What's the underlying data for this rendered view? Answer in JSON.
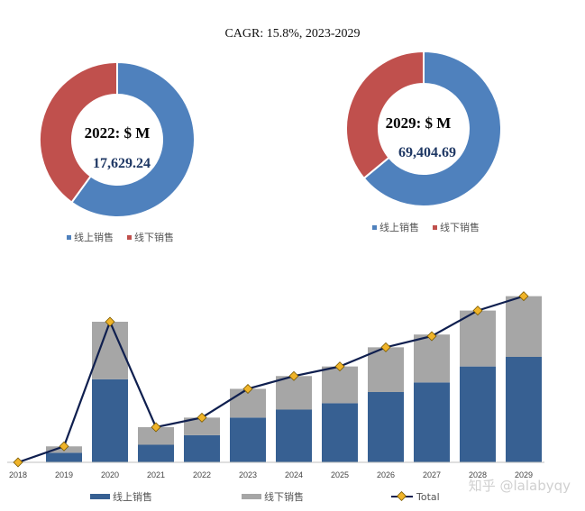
{
  "header": {
    "cagr_text": "CAGR: 15.8%, 2023-2029"
  },
  "colors": {
    "online": "#4f81bd",
    "offline": "#c0504d",
    "bar_online": "#376092",
    "bar_offline": "#a6a6a6",
    "total_line": "#0f1f4f",
    "marker": "#f0b429"
  },
  "donuts": [
    {
      "title": "2022: $ M",
      "value": "17,629.24",
      "online_share": 0.6,
      "offline_share": 0.4
    },
    {
      "title": "2029: $ M",
      "value": "69,404.69",
      "online_share": 0.64,
      "offline_share": 0.36
    }
  ],
  "donut_legend": [
    "线上销售",
    "线下销售"
  ],
  "chart_data": {
    "type": "bar",
    "stacked": true,
    "categories": [
      "2018",
      "2019",
      "2020",
      "2021",
      "2022",
      "2023",
      "2024",
      "2025",
      "2026",
      "2027",
      "2028",
      "2029"
    ],
    "series": [
      {
        "name": "线上销售",
        "values": [
          0,
          6,
          52,
          11,
          17,
          28,
          33,
          37,
          44,
          50,
          60,
          66
        ]
      },
      {
        "name": "线下销售",
        "values": [
          0,
          4,
          36,
          11,
          11,
          18,
          21,
          23,
          28,
          30,
          35,
          38
        ]
      },
      {
        "name": "Total",
        "type": "line",
        "values": [
          0,
          10,
          88,
          22,
          28,
          46,
          54,
          60,
          72,
          79,
          95,
          104
        ]
      }
    ],
    "ylim": [
      0,
      110
    ],
    "legend": [
      "线上销售",
      "线下销售",
      "Total"
    ],
    "legend_position": "bottom"
  },
  "watermark": "知乎 @lalabyqy"
}
